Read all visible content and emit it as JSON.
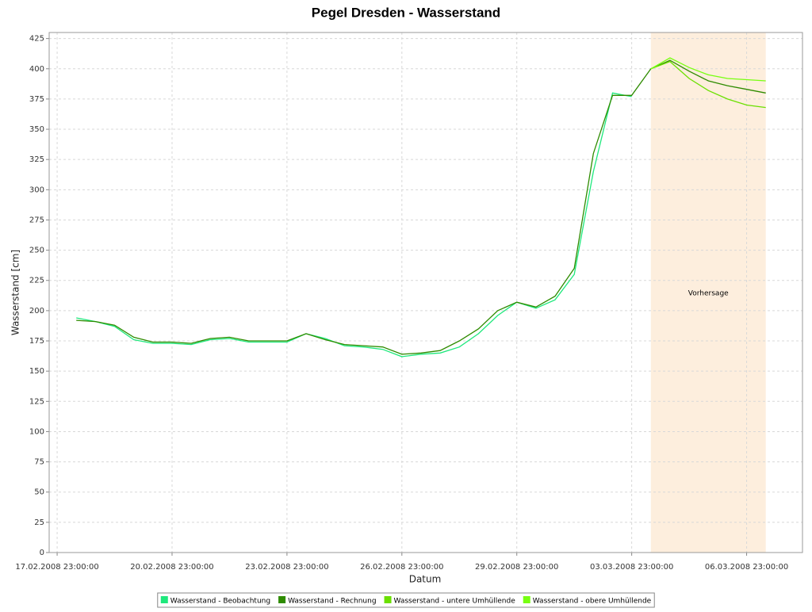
{
  "chart_data": {
    "type": "line",
    "title": "Pegel Dresden - Wasserstand",
    "xlabel": "Datum",
    "ylabel": "Wasserstand [cm]",
    "x": [
      "2008-02-18T11:00",
      "2008-02-18T23:00",
      "2008-02-19T11:00",
      "2008-02-19T23:00",
      "2008-02-20T11:00",
      "2008-02-20T23:00",
      "2008-02-21T11:00",
      "2008-02-21T23:00",
      "2008-02-22T11:00",
      "2008-02-22T23:00",
      "2008-02-23T11:00",
      "2008-02-23T23:00",
      "2008-02-24T11:00",
      "2008-02-24T23:00",
      "2008-02-25T11:00",
      "2008-02-25T23:00",
      "2008-02-26T11:00",
      "2008-02-26T23:00",
      "2008-02-27T11:00",
      "2008-02-27T23:00",
      "2008-02-28T11:00",
      "2008-02-28T23:00",
      "2008-02-29T11:00",
      "2008-02-29T23:00",
      "2008-03-01T11:00",
      "2008-03-01T23:00",
      "2008-03-02T11:00",
      "2008-03-02T23:00",
      "2008-03-03T11:00",
      "2008-03-03T23:00",
      "2008-03-04T11:00",
      "2008-03-04T23:00",
      "2008-03-05T11:00",
      "2008-03-05T23:00",
      "2008-03-06T11:00",
      "2008-03-06T23:00",
      "2008-03-07T11:00"
    ],
    "series": [
      {
        "name": "Wasserstand - Beobachtung",
        "color": "#1ee87c",
        "values": [
          194,
          191,
          187,
          176,
          173,
          173,
          172,
          176,
          177,
          174,
          174,
          174,
          181,
          177,
          171,
          170,
          168,
          162,
          164,
          165,
          170,
          181,
          196,
          207,
          202,
          209,
          230,
          315,
          380,
          377,
          null,
          null,
          null,
          null,
          null,
          null,
          null
        ]
      },
      {
        "name": "Wasserstand - Rechnung",
        "color": "#2e8b00",
        "values": [
          192,
          191,
          188,
          178,
          174,
          174,
          173,
          177,
          178,
          175,
          175,
          175,
          181,
          176,
          172,
          171,
          170,
          164,
          165,
          167,
          175,
          185,
          200,
          207,
          203,
          212,
          235,
          330,
          378,
          378,
          400,
          407,
          398,
          390,
          386,
          383,
          380
        ]
      },
      {
        "name": "Wasserstand - untere Umhüllende",
        "color": "#6ae000",
        "values": [
          null,
          null,
          null,
          null,
          null,
          null,
          null,
          null,
          null,
          null,
          null,
          null,
          null,
          null,
          null,
          null,
          null,
          null,
          null,
          null,
          null,
          null,
          null,
          null,
          null,
          null,
          null,
          null,
          null,
          null,
          400,
          406,
          392,
          382,
          375,
          370,
          368
        ]
      },
      {
        "name": "Wasserstand - obere Umhüllende",
        "color": "#77ff10",
        "values": [
          null,
          null,
          null,
          null,
          null,
          null,
          null,
          null,
          null,
          null,
          null,
          null,
          null,
          null,
          null,
          null,
          null,
          null,
          null,
          null,
          null,
          null,
          null,
          null,
          null,
          null,
          null,
          null,
          null,
          null,
          400,
          409,
          401,
          395,
          392,
          391,
          390
        ]
      }
    ],
    "forecast": {
      "label": "Vorhersage",
      "range": [
        "2008-03-04T11:00",
        "2008-03-07T11:00"
      ],
      "color": "#fdeedd"
    },
    "xlim": [
      "2008-02-17T18:00",
      "2008-03-08T10:00"
    ],
    "xticks": [
      {
        "value": "2008-02-17T23:00",
        "label": "17.02.2008 23:00:00"
      },
      {
        "value": "2008-02-20T23:00",
        "label": "20.02.2008 23:00:00"
      },
      {
        "value": "2008-02-23T23:00",
        "label": "23.02.2008 23:00:00"
      },
      {
        "value": "2008-02-26T23:00",
        "label": "26.02.2008 23:00:00"
      },
      {
        "value": "2008-02-29T23:00",
        "label": "29.02.2008 23:00:00"
      },
      {
        "value": "2008-03-03T23:00",
        "label": "03.03.2008 23:00:00"
      },
      {
        "value": "2008-03-06T23:00",
        "label": "06.03.2008 23:00:00"
      }
    ],
    "ylim": [
      0,
      430
    ],
    "yticks": [
      0,
      25,
      50,
      75,
      100,
      125,
      150,
      175,
      200,
      225,
      250,
      275,
      300,
      325,
      350,
      375,
      400,
      425
    ],
    "grid": true
  }
}
